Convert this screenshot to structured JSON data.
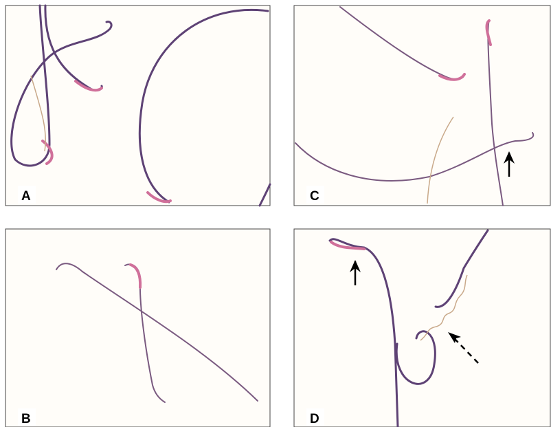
{
  "panels": [
    {
      "label": "A"
    },
    {
      "label": "C"
    },
    {
      "label": "B"
    },
    {
      "label": "D"
    }
  ]
}
